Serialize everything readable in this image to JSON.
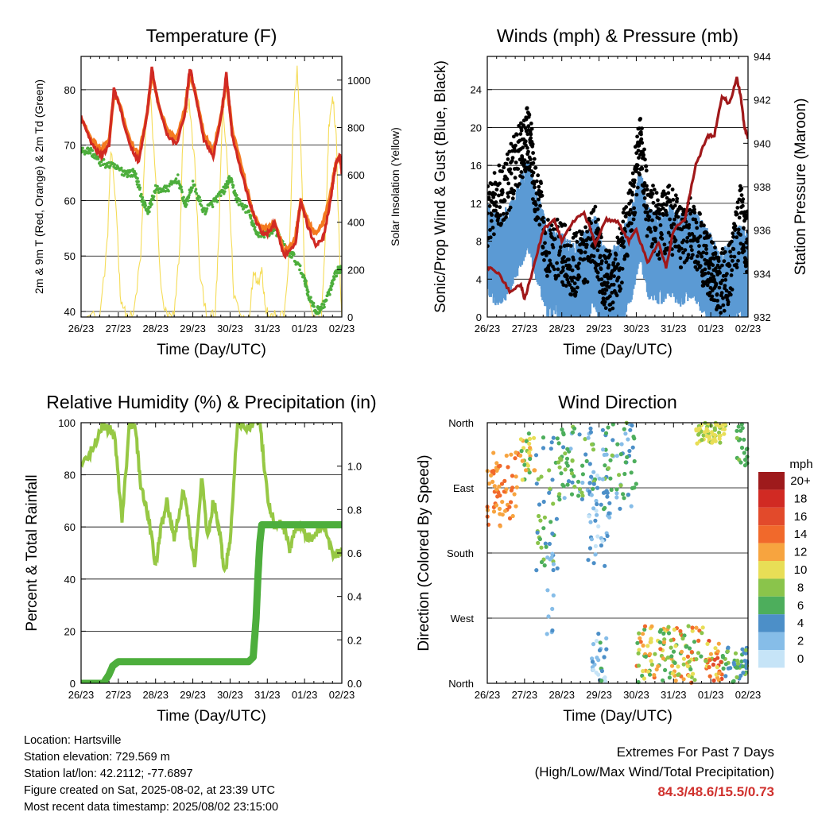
{
  "colors": {
    "temp2m": "#d12a23",
    "temp9m": "#f47a20",
    "dewpoint": "#4dae3c",
    "solar": "#f5dc57",
    "wind": "#5b9ad4",
    "gust": "#000000",
    "pressure": "#a0181a",
    "rh": "#96c844",
    "precip": "#4dae3c",
    "extremes": "#d0312d"
  },
  "time_ticks": [
    "26/23",
    "27/23",
    "28/23",
    "29/23",
    "30/23",
    "31/23",
    "01/23",
    "02/23"
  ],
  "xlabel": "Time (Day/UTC)",
  "chart_data": [
    {
      "type": "line",
      "title": "Temperature (F)",
      "xlabel": "Time (Day/UTC)",
      "ylabel": "2m & 9m T (Red, Orange) & 2m Td (Green)",
      "y2label": "Solar Insolation (Yellow)",
      "ylim": [
        39,
        86
      ],
      "y2lim": [
        0,
        1100
      ],
      "yticks": [
        40,
        50,
        60,
        70,
        80
      ],
      "y2ticks": [
        0,
        200,
        400,
        600,
        800,
        1000
      ],
      "x_days": [
        0,
        1,
        2,
        3,
        4,
        5,
        6,
        7
      ],
      "series": [
        {
          "key": "temp2m",
          "x": [
            0,
            0.3,
            0.55,
            0.75,
            0.88,
            1.0,
            1.3,
            1.55,
            1.78,
            1.9,
            2.05,
            2.3,
            2.55,
            2.8,
            2.92,
            3.05,
            3.3,
            3.55,
            3.78,
            3.9,
            4.05,
            4.35,
            4.6,
            4.85,
            5.0,
            5.2,
            5.45,
            5.75,
            5.9,
            6.1,
            6.3,
            6.5,
            6.72,
            6.85,
            6.95,
            7.0
          ],
          "y": [
            75,
            70,
            68,
            70,
            80,
            78,
            70,
            67,
            76,
            84,
            78,
            72,
            70,
            76,
            84,
            80,
            71,
            68,
            76,
            83,
            72,
            64,
            58,
            54,
            54,
            56,
            50,
            52,
            60,
            55,
            52,
            53,
            61,
            67,
            68,
            65
          ]
        },
        {
          "key": "temp9m",
          "x": [
            0,
            0.3,
            0.55,
            0.75,
            0.88,
            1.0,
            1.3,
            1.55,
            1.78,
            1.9,
            2.05,
            2.3,
            2.55,
            2.8,
            2.92,
            3.05,
            3.3,
            3.55,
            3.78,
            3.9,
            4.05,
            4.35,
            4.6,
            4.85,
            5.0,
            5.2,
            5.45,
            5.75,
            5.9,
            6.1,
            6.3,
            6.5,
            6.72,
            6.85,
            6.95,
            7.0
          ],
          "y": [
            75,
            71,
            69,
            71,
            79,
            78,
            71,
            68,
            76,
            83,
            78,
            73,
            71,
            77,
            83,
            80,
            72,
            69,
            76,
            82,
            73,
            65,
            58,
            55,
            55,
            56,
            51,
            53,
            60,
            56,
            54,
            56,
            62,
            67,
            68,
            66
          ]
        },
        {
          "key": "dewpoint",
          "x": [
            0,
            0.25,
            0.5,
            0.9,
            1.2,
            1.45,
            1.65,
            1.8,
            2.0,
            2.3,
            2.6,
            2.8,
            3.0,
            3.3,
            3.6,
            3.85,
            4.0,
            4.2,
            4.5,
            4.7,
            5.0,
            5.2,
            5.5,
            5.7,
            6.0,
            6.1,
            6.3,
            6.5,
            6.7,
            6.85,
            7.0
          ],
          "y": [
            69,
            69,
            67,
            66,
            65,
            65,
            60,
            58,
            62,
            62,
            64,
            59,
            63,
            58,
            60,
            62,
            64,
            60,
            58,
            54,
            54,
            55,
            51,
            50,
            46,
            43,
            40,
            41,
            44,
            47,
            48
          ]
        },
        {
          "key": "solar",
          "x": [
            0,
            0.5,
            0.7,
            0.8,
            0.95,
            1.05,
            1.2,
            1.4,
            1.6,
            1.75,
            1.85,
            2.0,
            2.15,
            2.3,
            2.5,
            2.65,
            2.75,
            2.9,
            3.05,
            3.2,
            3.4,
            3.6,
            3.7,
            3.8,
            3.95,
            4.1,
            4.3,
            4.5,
            4.65,
            4.75,
            4.85,
            4.95,
            5.05,
            5.2,
            5.45,
            5.6,
            5.7,
            5.8,
            5.9,
            6.0,
            6.2,
            6.45,
            6.55,
            6.65,
            6.75,
            6.85,
            6.95,
            7.0
          ],
          "y": [
            0,
            0,
            300,
            700,
            450,
            100,
            0,
            0,
            250,
            850,
            950,
            600,
            100,
            0,
            0,
            300,
            850,
            900,
            650,
            150,
            0,
            0,
            350,
            900,
            600,
            100,
            0,
            0,
            200,
            150,
            200,
            50,
            0,
            0,
            0,
            300,
            850,
            1050,
            700,
            200,
            0,
            0,
            300,
            800,
            950,
            750,
            200,
            0
          ]
        }
      ]
    },
    {
      "type": "line",
      "title": "Winds (mph) & Pressure (mb)",
      "xlabel": "Time (Day/UTC)",
      "ylabel": "Sonic/Prop Wind & Gust (Blue, Black)",
      "y2label": "Station Pressure (Maroon)",
      "ylim": [
        0,
        27.5
      ],
      "y2lim": [
        932,
        944
      ],
      "yticks": [
        0,
        4,
        8,
        12,
        16,
        20,
        24
      ],
      "y2ticks": [
        932,
        934,
        936,
        938,
        940,
        942,
        944
      ],
      "series": [
        {
          "key": "wind",
          "x": [
            0,
            0.3,
            0.6,
            0.9,
            1.1,
            1.3,
            1.6,
            2.0,
            2.3,
            2.6,
            2.9,
            3.1,
            3.3,
            3.6,
            3.9,
            4.1,
            4.3,
            4.6,
            4.9,
            5.2,
            5.5,
            5.8,
            6.0,
            6.2,
            6.5,
            6.8,
            7.0
          ],
          "y": [
            8,
            7,
            8,
            11,
            13,
            10,
            6,
            5,
            4,
            5,
            7,
            4,
            3,
            5,
            8,
            12,
            8,
            7,
            8,
            7,
            8,
            6,
            5,
            3,
            4,
            6,
            5
          ]
        },
        {
          "key": "gust",
          "x": [
            0,
            0.3,
            0.6,
            0.9,
            1.1,
            1.3,
            1.6,
            2.0,
            2.3,
            2.6,
            2.9,
            3.1,
            3.3,
            3.6,
            3.9,
            4.1,
            4.3,
            4.6,
            4.9,
            5.2,
            5.5,
            5.8,
            6.0,
            6.2,
            6.5,
            6.8,
            7.0
          ],
          "y": [
            12,
            14,
            16,
            19,
            21,
            15,
            9,
            8,
            7,
            8,
            10,
            6,
            5,
            8,
            14,
            20,
            13,
            11,
            12,
            10,
            11,
            8,
            7,
            5,
            6,
            12,
            9
          ]
        },
        {
          "key": "pressure",
          "x": [
            0,
            0.3,
            0.6,
            0.9,
            1.0,
            1.2,
            1.5,
            1.8,
            2.0,
            2.3,
            2.6,
            2.9,
            3.2,
            3.5,
            3.8,
            4.0,
            4.3,
            4.6,
            4.8,
            5.0,
            5.3,
            5.6,
            5.9,
            6.1,
            6.3,
            6.5,
            6.7,
            6.8,
            6.9,
            7.0
          ],
          "y": [
            934.3,
            934,
            933.2,
            933.5,
            932.8,
            934,
            936,
            936.5,
            935.5,
            936.4,
            936.8,
            935.4,
            936.5,
            936.4,
            935.5,
            936,
            934.5,
            935.4,
            934.3,
            936,
            936.5,
            939,
            940.3,
            940.4,
            942.2,
            941.8,
            943,
            942.2,
            940.8,
            940.2
          ]
        }
      ]
    },
    {
      "type": "line",
      "title": "Relative Humidity (%) & Precipitation (in)",
      "xlabel": "Time (Day/UTC)",
      "ylabel": "Percent & Total Rainfall",
      "ylim": [
        0,
        100
      ],
      "y2lim": [
        0,
        1.2
      ],
      "yticks": [
        0,
        20,
        40,
        60,
        80,
        100
      ],
      "y2ticks": [
        "0.0",
        "0.2",
        "0.4",
        "0.6",
        "0.8",
        "1.0"
      ],
      "series": [
        {
          "key": "rh",
          "x": [
            0,
            0.3,
            0.6,
            0.9,
            1.1,
            1.3,
            1.45,
            1.6,
            1.8,
            2.0,
            2.15,
            2.3,
            2.5,
            2.75,
            2.9,
            3.05,
            3.25,
            3.4,
            3.55,
            3.7,
            3.85,
            4.0,
            4.2,
            4.5,
            4.8,
            5.0,
            5.2,
            5.4,
            5.6,
            5.8,
            6.0,
            6.2,
            6.5,
            6.8,
            7.0
          ],
          "y": [
            83,
            90,
            100,
            95,
            62,
            100,
            100,
            75,
            65,
            45,
            60,
            70,
            55,
            75,
            60,
            45,
            80,
            55,
            70,
            60,
            42,
            55,
            100,
            98,
            100,
            72,
            60,
            62,
            52,
            60,
            58,
            55,
            60,
            48,
            52
          ]
        },
        {
          "key": "precip",
          "x": [
            0,
            0.6,
            0.75,
            0.85,
            1.0,
            2.0,
            3.0,
            4.0,
            4.5,
            4.62,
            4.7,
            4.75,
            4.8,
            4.85,
            5.0,
            6.0,
            7.0
          ],
          "y": [
            0,
            0,
            0.04,
            0.08,
            0.1,
            0.1,
            0.1,
            0.1,
            0.1,
            0.12,
            0.3,
            0.5,
            0.65,
            0.73,
            0.73,
            0.73,
            0.73
          ]
        }
      ]
    },
    {
      "type": "scatter",
      "title": "Wind Direction",
      "xlabel": "Time (Day/UTC)",
      "ylabel": "Direction (Colored By Speed)",
      "yticks": [
        "North",
        "East",
        "South",
        "West",
        "North"
      ],
      "ylim": [
        0,
        360
      ],
      "legend_title": "mph",
      "legend_labels": [
        "20+",
        "18",
        "16",
        "14",
        "12",
        "10",
        "8",
        "6",
        "4",
        "2",
        "0"
      ],
      "legend_colors": [
        "#9e1a1c",
        "#d12a23",
        "#e24a2b",
        "#f1692b",
        "#f7a43f",
        "#e8de56",
        "#8ac44b",
        "#4dae5c",
        "#4c8fc8",
        "#86bde8",
        "#c6e4f7"
      ],
      "segments": [
        {
          "t0": 0.0,
          "t1": 0.9,
          "d0": 215,
          "d1": 320,
          "sp": [
            11,
            15
          ]
        },
        {
          "t0": 0.9,
          "t1": 1.3,
          "d0": 280,
          "d1": 350,
          "sp": [
            6,
            12
          ]
        },
        {
          "t0": 1.3,
          "t1": 1.9,
          "d0": 150,
          "d1": 350,
          "sp": [
            3,
            9
          ]
        },
        {
          "t0": 1.6,
          "t1": 1.8,
          "d0": 60,
          "d1": 190,
          "sp": [
            1,
            4
          ]
        },
        {
          "t0": 1.9,
          "t1": 2.9,
          "d0": 250,
          "d1": 360,
          "sp": [
            2,
            9
          ]
        },
        {
          "t0": 2.7,
          "t1": 3.3,
          "d0": 160,
          "d1": 300,
          "sp": [
            0,
            5
          ]
        },
        {
          "t0": 2.8,
          "t1": 3.2,
          "d0": 0,
          "d1": 70,
          "sp": [
            0,
            6
          ]
        },
        {
          "t0": 3.1,
          "t1": 4.0,
          "d0": 240,
          "d1": 360,
          "sp": [
            2,
            8
          ]
        },
        {
          "t0": 4.0,
          "t1": 5.8,
          "d0": 0,
          "d1": 80,
          "sp": [
            5,
            14
          ]
        },
        {
          "t0": 5.8,
          "t1": 6.3,
          "d0": 0,
          "d1": 60,
          "sp": [
            8,
            16
          ]
        },
        {
          "t0": 6.3,
          "t1": 7.0,
          "d0": 0,
          "d1": 50,
          "sp": [
            3,
            9
          ]
        },
        {
          "t0": 5.6,
          "t1": 6.4,
          "d0": 330,
          "d1": 360,
          "sp": [
            8,
            11
          ]
        },
        {
          "t0": 6.7,
          "t1": 7.0,
          "d0": 300,
          "d1": 360,
          "sp": [
            5,
            8
          ]
        }
      ]
    }
  ],
  "footer": {
    "location": "Location: Hartsville",
    "elevation": "Station elevation: 729.569 m",
    "latlon": "Station lat/lon: 42.2112; -77.6897",
    "created": "Figure created on Sat, 2025-08-02, at 23:39 UTC",
    "recent": "Most recent data timestamp: 2025/08/02 23:15:00"
  },
  "extremes": {
    "title": "Extremes For Past 7 Days",
    "subtitle": "(High/Low/Max Wind/Total Precipitation)",
    "value": "84.3/48.6/15.5/0.73"
  }
}
